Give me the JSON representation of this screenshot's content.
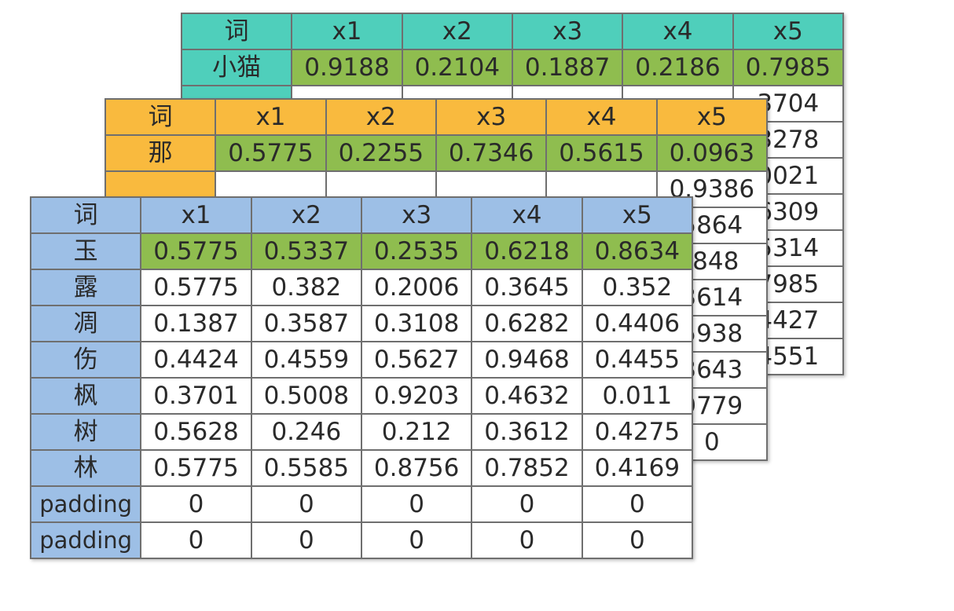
{
  "back": {
    "header": [
      "词",
      "x1",
      "x2",
      "x3",
      "x4",
      "x5"
    ],
    "rows": [
      {
        "word": "小猫",
        "values": [
          "0.9188",
          "0.2104",
          "0.1887",
          "0.2186",
          "0.7985"
        ]
      },
      {
        "word": "",
        "values": [
          "",
          "",
          "",
          "",
          "3704"
        ]
      },
      {
        "word": "",
        "values": [
          "",
          "",
          "",
          "",
          "3278"
        ]
      },
      {
        "word": "",
        "values": [
          "",
          "",
          "",
          "",
          "0021"
        ]
      },
      {
        "word": "",
        "values": [
          "",
          "",
          "",
          "",
          "6309"
        ]
      },
      {
        "word": "",
        "values": [
          "",
          "",
          "",
          "",
          "5314"
        ]
      },
      {
        "word": "",
        "values": [
          "",
          "",
          "",
          "",
          "7985"
        ]
      },
      {
        "word": "",
        "values": [
          "",
          "",
          "",
          "",
          "4427"
        ]
      },
      {
        "word": "",
        "values": [
          "",
          "",
          "",
          "",
          "4551"
        ]
      }
    ]
  },
  "mid": {
    "header": [
      "词",
      "x1",
      "x2",
      "x3",
      "x4",
      "x5"
    ],
    "rows": [
      {
        "word": "那",
        "values": [
          "0.5775",
          "0.2255",
          "0.7346",
          "0.5615",
          "0.0963"
        ]
      },
      {
        "word": "",
        "values": [
          "",
          "",
          "",
          "",
          "0.9386"
        ]
      },
      {
        "word": "",
        "values": [
          "",
          "",
          "",
          "",
          "5864"
        ]
      },
      {
        "word": "",
        "values": [
          "",
          "",
          "",
          "",
          ".848"
        ]
      },
      {
        "word": "",
        "values": [
          "",
          "",
          "",
          "",
          "3614"
        ]
      },
      {
        "word": "",
        "values": [
          "",
          "",
          "",
          "",
          "5938"
        ]
      },
      {
        "word": "",
        "values": [
          "",
          "",
          "",
          "",
          "3643"
        ]
      },
      {
        "word": "",
        "values": [
          "",
          "",
          "",
          "",
          "9779"
        ]
      },
      {
        "word": "",
        "values": [
          "",
          "",
          "",
          "",
          "0"
        ]
      }
    ]
  },
  "front": {
    "header": [
      "词",
      "x1",
      "x2",
      "x3",
      "x4",
      "x5"
    ],
    "rows": [
      {
        "word": "玉",
        "values": [
          "0.5775",
          "0.5337",
          "0.2535",
          "0.6218",
          "0.8634"
        ]
      },
      {
        "word": "露",
        "values": [
          "0.5775",
          "0.382",
          "0.2006",
          "0.3645",
          "0.352"
        ]
      },
      {
        "word": "凋",
        "values": [
          "0.1387",
          "0.3587",
          "0.3108",
          "0.6282",
          "0.4406"
        ]
      },
      {
        "word": "伤",
        "values": [
          "0.4424",
          "0.4559",
          "0.5627",
          "0.9468",
          "0.4455"
        ]
      },
      {
        "word": "枫",
        "values": [
          "0.3701",
          "0.5008",
          "0.9203",
          "0.4632",
          "0.011"
        ]
      },
      {
        "word": "树",
        "values": [
          "0.5628",
          "0.246",
          "0.212",
          "0.3612",
          "0.4275"
        ]
      },
      {
        "word": "林",
        "values": [
          "0.5775",
          "0.5585",
          "0.8756",
          "0.7852",
          "0.4169"
        ]
      },
      {
        "word": "padding",
        "values": [
          "0",
          "0",
          "0",
          "0",
          "0"
        ]
      },
      {
        "word": "padding",
        "values": [
          "0",
          "0",
          "0",
          "0",
          "0"
        ]
      }
    ]
  }
}
